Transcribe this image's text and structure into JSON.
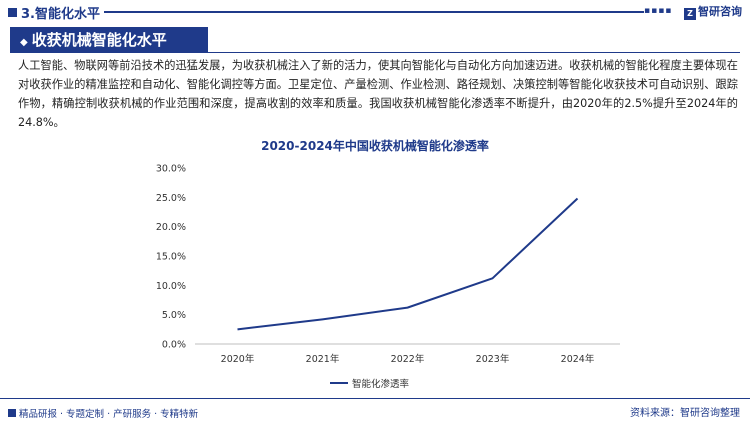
{
  "header": {
    "section_title": "3.智能化水平",
    "brand": "智研咨询"
  },
  "banner": {
    "title": "收获机械智能化水平"
  },
  "paragraph": "人工智能、物联网等前沿技术的迅猛发展，为收获机械注入了新的活力，使其向智能化与自动化方向加速迈进。收获机械的智能化程度主要体现在对收获作业的精准监控和自动化、智能化调控等方面。卫星定位、产量检测、作业检测、路径规划、决策控制等智能化收获技术可自动识别、跟踪作物，精确控制收获机械的作业范围和深度，提高收割的效率和质量。我国收获机械智能化渗透率不断提升，由2020年的2.5%提升至2024年的24.8%。",
  "chart_data": {
    "type": "line",
    "title": "2020-2024年中国收获机械智能化渗透率",
    "categories": [
      "2020年",
      "2021年",
      "2022年",
      "2023年",
      "2024年"
    ],
    "series": [
      {
        "name": "智能化渗透率",
        "values": [
          2.5,
          4.2,
          6.2,
          11.2,
          24.8
        ],
        "color": "#1f3a8a"
      }
    ],
    "y_ticks": [
      "0.0%",
      "5.0%",
      "10.0%",
      "15.0%",
      "20.0%",
      "25.0%",
      "30.0%"
    ],
    "ylim": [
      0,
      30
    ],
    "grid": false,
    "legend_position": "bottom"
  },
  "footer": {
    "left": "精品研报 · 专题定制 · 产研服务 · 专精特新",
    "right": "资料来源：智研咨询整理"
  }
}
